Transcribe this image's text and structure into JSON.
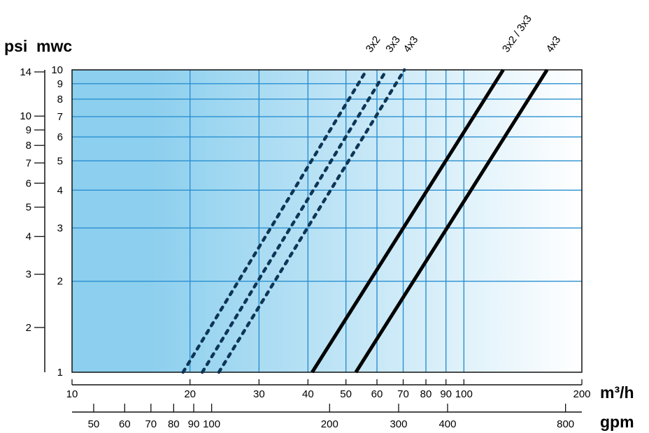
{
  "chart_data": {
    "type": "line",
    "x_scale": "log",
    "y_scale": "log",
    "grid": true,
    "y_axis_left_label": "psi",
    "y_axis_right_label": "mwc",
    "x_axis_top_label": "m³/h",
    "x_axis_bottom_label": "gpm",
    "xlim_m3h": [
      10,
      200
    ],
    "ylim_mwc": [
      1,
      10
    ],
    "x_ticks_m3h": [
      10,
      20,
      30,
      40,
      50,
      60,
      70,
      80,
      90,
      100,
      200
    ],
    "x_ticks_gpm": [
      50,
      60,
      70,
      80,
      90,
      100,
      200,
      300,
      400,
      800
    ],
    "y_ticks_mwc": [
      1,
      2,
      3,
      4,
      5,
      6,
      7,
      8,
      9,
      10
    ],
    "y_ticks_psi": [
      2,
      3,
      4,
      5,
      6,
      7,
      8,
      9,
      10,
      14
    ],
    "series": [
      {
        "name": "3x2",
        "style": "dashed",
        "x": [
          19.2,
          56.5
        ],
        "y": [
          1,
          10
        ]
      },
      {
        "name": "3x3",
        "style": "dashed",
        "x": [
          21.5,
          63.5
        ],
        "y": [
          1,
          10
        ]
      },
      {
        "name": "4x3",
        "style": "dashed",
        "x": [
          23.7,
          70.5
        ],
        "y": [
          1,
          10
        ]
      },
      {
        "name": "3x2 / 3x3",
        "style": "solid",
        "x": [
          41.0,
          126
        ],
        "y": [
          1,
          10
        ]
      },
      {
        "name": "4x3",
        "style": "solid",
        "x": [
          53.0,
          163
        ],
        "y": [
          1,
          10
        ]
      }
    ]
  },
  "colors": {
    "grid": "#2a8fd0",
    "fill_start": "#8ccfee",
    "fill_end": "#ffffff",
    "curve": "#0d3556"
  }
}
